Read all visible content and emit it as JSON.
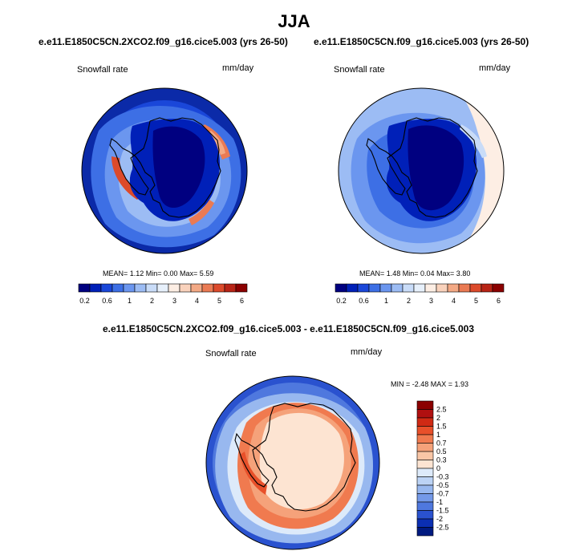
{
  "figure": {
    "title": "JJA",
    "colors": [
      "#000080",
      "#0020b8",
      "#1a47d9",
      "#3d6fe5",
      "#6b96ef",
      "#9cbcf4",
      "#c9dcf8",
      "#e7f0fb",
      "#fdeee4",
      "#f9d2bc",
      "#f3a985",
      "#ea7a53",
      "#dc4a2b",
      "#b82416",
      "#8b0000"
    ]
  },
  "panels": [
    {
      "title": "e.e11.E1850C5CN.2XCO2.f09_g16.cice5.003 (yrs 26-50)",
      "variable": "Snowfall rate",
      "units": "mm/day",
      "stats": "MEAN=  1.12  Min=  0.00  Max=  5.59",
      "colorbar_labels": [
        "0.2",
        "0.6",
        "1",
        "2",
        "3",
        "4",
        "5",
        "6"
      ]
    },
    {
      "title": "e.e11.E1850C5CN.f09_g16.cice5.003 (yrs 26-50)",
      "variable": "Snowfall rate",
      "units": "mm/day",
      "stats": "MEAN=  1.48  Min=  0.04  Max=  3.80",
      "colorbar_labels": [
        "0.2",
        "0.6",
        "1",
        "2",
        "3",
        "4",
        "5",
        "6"
      ]
    }
  ],
  "difference": {
    "title": "e.e11.E1850C5CN.2XCO2.f09_g16.cice5.003 - e.e11.E1850C5CN.f09_g16.cice5.003",
    "variable": "Snowfall rate",
    "units": "mm/day",
    "stats": "MIN =  -2.48 MAX =  1.93",
    "colorbar_labels": [
      "2.5",
      "2",
      "1.5",
      "1",
      "0.7",
      "0.5",
      "0.3",
      "0",
      "-0.3",
      "-0.5",
      "-0.7",
      "-1",
      "-1.5",
      "-2",
      "-2.5"
    ],
    "colors": [
      "#8b0000",
      "#b01010",
      "#d02a14",
      "#e8502a",
      "#f07a4f",
      "#f5a27a",
      "#f9c6a6",
      "#fde4d2",
      "#ddeafa",
      "#bcd3f5",
      "#98b8ef",
      "#7499e8",
      "#4f78de",
      "#2a52cf",
      "#0b2fb2",
      "#001a80"
    ]
  }
}
